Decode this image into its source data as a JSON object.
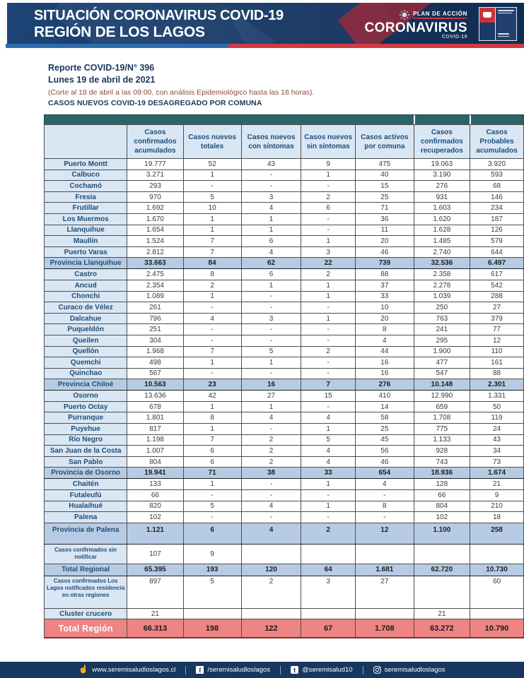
{
  "banner": {
    "title_line1": "SITUACIÓN CORONAVIRUS COVID-19",
    "title_line2": "REGIÓN DE LOS LAGOS",
    "plan_label": "PLAN DE ACCIÓN",
    "brand": "CORONAVIRUS",
    "brand_sub": "COVID-19"
  },
  "report": {
    "number_line": "Reporte COVID-19/N° 396",
    "date_line": "Lunes 19 de abril de 2021",
    "cutoff_line": "(Corte al 18 de abril a las 09:00, con análisis Epidemiológico hasta las 18 horas).",
    "section_title": "CASOS NUEVOS COVID-19 DESAGREGADO POR COMUNA"
  },
  "table": {
    "columns": [
      "Casos confirmados acumulados",
      "Casos nuevos totales",
      "Casos nuevos con síntomas",
      "Casos nuevos sin síntomas",
      "Casos activos por comuna",
      "Casos confirmados recuperados",
      "Casos Probables acumulados"
    ],
    "rows": [
      {
        "label": "Puerto Montt",
        "type": "comuna",
        "values": [
          "19.777",
          "52",
          "43",
          "9",
          "475",
          "19.063",
          "3.920"
        ]
      },
      {
        "label": "Calbuco",
        "type": "comuna",
        "values": [
          "3.271",
          "1",
          "-",
          "1",
          "40",
          "3.190",
          "593"
        ]
      },
      {
        "label": "Cochamó",
        "type": "comuna",
        "values": [
          "293",
          "-",
          "-",
          "-",
          "15",
          "276",
          "68"
        ]
      },
      {
        "label": "Fresia",
        "type": "comuna",
        "values": [
          "970",
          "5",
          "3",
          "2",
          "25",
          "931",
          "146"
        ]
      },
      {
        "label": "Frutillar",
        "type": "comuna",
        "values": [
          "1.692",
          "10",
          "4",
          "6",
          "71",
          "1.603",
          "234"
        ]
      },
      {
        "label": "Los Muermos",
        "type": "comuna",
        "values": [
          "1.670",
          "1",
          "1",
          "-",
          "36",
          "1.620",
          "187"
        ]
      },
      {
        "label": "Llanquihue",
        "type": "comuna",
        "values": [
          "1.654",
          "1",
          "1",
          "-",
          "11",
          "1.628",
          "126"
        ]
      },
      {
        "label": "Maullín",
        "type": "comuna",
        "values": [
          "1.524",
          "7",
          "6",
          "1",
          "20",
          "1.485",
          "579"
        ]
      },
      {
        "label": "Puerto Varas",
        "type": "comuna",
        "values": [
          "2.812",
          "7",
          "4",
          "3",
          "46",
          "2.740",
          "644"
        ]
      },
      {
        "label": "Provincia Llanquihue",
        "type": "prov",
        "values": [
          "33.663",
          "84",
          "62",
          "22",
          "739",
          "32.536",
          "6.497"
        ]
      },
      {
        "label": "Castro",
        "type": "comuna",
        "values": [
          "2.475",
          "8",
          "6",
          "2",
          "88",
          "2.358",
          "617"
        ]
      },
      {
        "label": "Ancud",
        "type": "comuna",
        "values": [
          "2.354",
          "2",
          "1",
          "1",
          "37",
          "2.278",
          "542"
        ]
      },
      {
        "label": "Chonchi",
        "type": "comuna",
        "values": [
          "1.089",
          "1",
          "-",
          "1",
          "33",
          "1.039",
          "288"
        ]
      },
      {
        "label": "Curaco de Vélez",
        "type": "comuna",
        "values": [
          "261",
          "-",
          "-",
          "-",
          "10",
          "250",
          "27"
        ]
      },
      {
        "label": "Dalcahue",
        "type": "comuna",
        "values": [
          "796",
          "4",
          "3",
          "1",
          "20",
          "763",
          "379"
        ]
      },
      {
        "label": "Puqueldón",
        "type": "comuna",
        "values": [
          "251",
          "-",
          "-",
          "-",
          "8",
          "241",
          "77"
        ]
      },
      {
        "label": "Queilen",
        "type": "comuna",
        "values": [
          "304",
          "-",
          "-",
          "-",
          "4",
          "295",
          "12"
        ]
      },
      {
        "label": "Quellón",
        "type": "comuna",
        "values": [
          "1.968",
          "7",
          "5",
          "2",
          "44",
          "1.900",
          "110"
        ]
      },
      {
        "label": "Quemchi",
        "type": "comuna",
        "values": [
          "498",
          "1",
          "1",
          "-",
          "16",
          "477",
          "161"
        ]
      },
      {
        "label": "Quinchao",
        "type": "comuna",
        "values": [
          "567",
          "-",
          "-",
          "-",
          "16",
          "547",
          "88"
        ]
      },
      {
        "label": "Provincia Chiloé",
        "type": "prov",
        "values": [
          "10.563",
          "23",
          "16",
          "7",
          "276",
          "10.148",
          "2.301"
        ]
      },
      {
        "label": "Osorno",
        "type": "comuna",
        "values": [
          "13.636",
          "42",
          "27",
          "15",
          "410",
          "12.990",
          "1.331"
        ]
      },
      {
        "label": "Puerto Octay",
        "type": "comuna",
        "values": [
          "678",
          "1",
          "1",
          "-",
          "14",
          "659",
          "50"
        ]
      },
      {
        "label": "Purranque",
        "type": "comuna",
        "values": [
          "1.801",
          "8",
          "4",
          "4",
          "58",
          "1.708",
          "119"
        ]
      },
      {
        "label": "Puyehue",
        "type": "comuna",
        "values": [
          "817",
          "1",
          "-",
          "1",
          "25",
          "775",
          "24"
        ]
      },
      {
        "label": "Río Negro",
        "type": "comuna",
        "values": [
          "1.198",
          "7",
          "2",
          "5",
          "45",
          "1.133",
          "43"
        ]
      },
      {
        "label": "San Juan de la Costa",
        "type": "comuna",
        "values": [
          "1.007",
          "6",
          "2",
          "4",
          "56",
          "928",
          "34"
        ]
      },
      {
        "label": "San Pablo",
        "type": "comuna",
        "values": [
          "804",
          "6",
          "2",
          "4",
          "46",
          "743",
          "73"
        ]
      },
      {
        "label": "Provincia de Osorno",
        "type": "prov",
        "values": [
          "19.941",
          "71",
          "38",
          "33",
          "654",
          "18.936",
          "1.674"
        ]
      },
      {
        "label": "Chaitén",
        "type": "comuna",
        "values": [
          "133",
          "1",
          "-",
          "1",
          "4",
          "128",
          "21"
        ]
      },
      {
        "label": "Futaleufú",
        "type": "comuna",
        "values": [
          "66",
          "-",
          "-",
          "-",
          "-",
          "66",
          "9"
        ]
      },
      {
        "label": "Hualaihué",
        "type": "comuna",
        "values": [
          "820",
          "5",
          "4",
          "1",
          "8",
          "804",
          "210"
        ]
      },
      {
        "label": "Palena",
        "type": "comuna",
        "values": [
          "102",
          "-",
          "-",
          "-",
          "-",
          "102",
          "18"
        ]
      },
      {
        "label": "Provincia de Palena",
        "type": "prov-tall",
        "values": [
          "1.121",
          "6",
          "4",
          "2",
          "12",
          "1.100",
          "258"
        ]
      },
      {
        "label": "Casos confirmados sin notificar",
        "type": "note",
        "values": [
          "107",
          "9",
          "",
          "",
          "",
          "",
          ""
        ]
      },
      {
        "label": "Total Regional",
        "type": "total",
        "values": [
          "65.395",
          "193",
          "120",
          "64",
          "1.681",
          "62.720",
          "10.730"
        ]
      },
      {
        "label": "Casos confirmados Los Lagos notificados residencia en otras regiones",
        "type": "note-tall",
        "values": [
          "897",
          "5",
          "2",
          "3",
          "27",
          "",
          "60"
        ]
      },
      {
        "label": "Cluster crucero",
        "type": "comuna",
        "values": [
          "21",
          "",
          "",
          "",
          "",
          "21",
          ""
        ]
      },
      {
        "label": "Total Región",
        "type": "grand",
        "values": [
          "66.313",
          "198",
          "122",
          "67",
          "1.708",
          "63.272",
          "10.790"
        ]
      }
    ]
  },
  "footer": {
    "links": [
      {
        "name": "website",
        "icon": "pointer-hand-icon",
        "glyph": "☝",
        "text": "www.seremisaludloslagos.cl"
      },
      {
        "name": "facebook",
        "icon": "facebook-icon",
        "glyph": "f",
        "text": "/seremisaludloslagos"
      },
      {
        "name": "tumblr",
        "icon": "tumblr-icon",
        "glyph": "t",
        "text": "@seremisalud10"
      },
      {
        "name": "instagram",
        "icon": "instagram-icon",
        "glyph": "",
        "text": "seremisaludloslagos"
      }
    ]
  },
  "colors": {
    "banner_navy": "#16355f",
    "teal_bar": "#2b6467",
    "label_bg": "#d9e6f4",
    "province_bg": "#b7cce4",
    "grand_total_bg": "#ee8484",
    "accent_red": "#d23a41",
    "accent_blue": "#2c6cb0",
    "navy_text": "#1f4e79",
    "footer_navy": "#17375e",
    "cutoff_text": "#8b4a43"
  }
}
